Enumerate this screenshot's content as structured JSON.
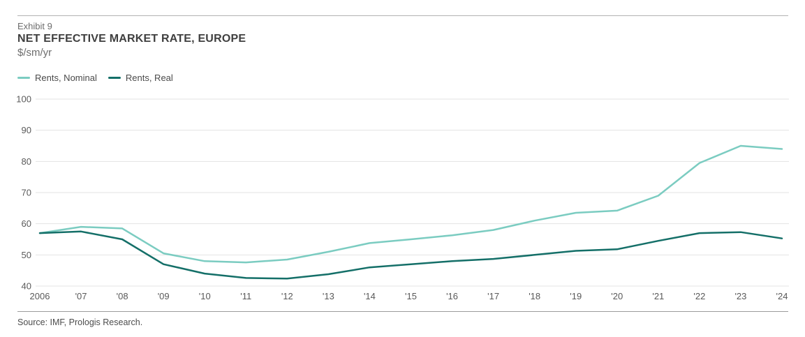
{
  "header": {
    "exhibit": "Exhibit 9",
    "title": "NET EFFECTIVE MARKET RATE, EUROPE",
    "unit": "$/sm/yr"
  },
  "legend": [
    {
      "label": "Rents, Nominal",
      "color": "#7BCCC1"
    },
    {
      "label": "Rents, Real",
      "color": "#146F68"
    }
  ],
  "source": "Source: IMF, Prologis Research.",
  "colors": {
    "nominal": "#7BCCC1",
    "real": "#146F68",
    "gridline": "#E3E3E3",
    "axis_text": "#595959"
  },
  "chart_data": {
    "type": "line",
    "title": "NET EFFECTIVE MARKET RATE, EUROPE",
    "ylabel": "$/sm/yr",
    "x": [
      "2006",
      "'07",
      "'08",
      "'09",
      "'10",
      "'11",
      "'12",
      "'13",
      "'14",
      "'15",
      "'16",
      "'17",
      "'18",
      "'19",
      "'20",
      "'21",
      "'22",
      "'23",
      "'24"
    ],
    "series": [
      {
        "name": "Rents, Nominal",
        "color": "#7BCCC1",
        "values": [
          57,
          59,
          58.5,
          50.5,
          48,
          47.6,
          48.5,
          51,
          53.8,
          55,
          56.3,
          58,
          61,
          63.5,
          64.2,
          69,
          79.5,
          85,
          84
        ]
      },
      {
        "name": "Rents, Real",
        "color": "#146F68",
        "values": [
          57,
          57.5,
          55,
          47,
          44,
          42.6,
          42.4,
          43.8,
          46,
          47,
          48,
          48.7,
          50,
          51.3,
          51.8,
          54.5,
          57,
          57.3,
          55.3
        ]
      }
    ],
    "ylim": [
      40,
      100
    ],
    "yticks": [
      100,
      90,
      80,
      70,
      60,
      50,
      40
    ],
    "grid": true,
    "legend_position": "top-left"
  }
}
